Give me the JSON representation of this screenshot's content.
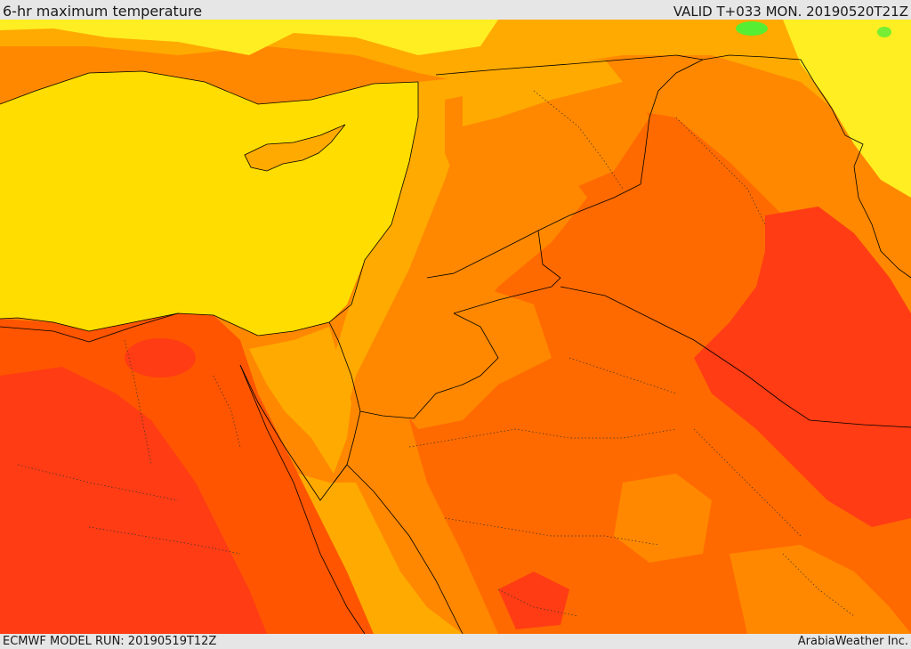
{
  "header": {
    "title": "6-hr maximum temperature",
    "valid": "VALID T+033 MON. 20190520T21Z"
  },
  "footer": {
    "model_run": "ECMWF MODEL RUN: 20190519T12Z",
    "credit": "ArabiaWeather Inc."
  },
  "colors": {
    "sea": "#ffdd00",
    "yellow_band": "#ffee22",
    "light_orange": "#ffaa00",
    "orange": "#ff8800",
    "dark_orange": "#ff6a00",
    "red_orange": "#ff5500",
    "red": "#ff3c14",
    "green": "#55ee33",
    "border": "#000000"
  }
}
